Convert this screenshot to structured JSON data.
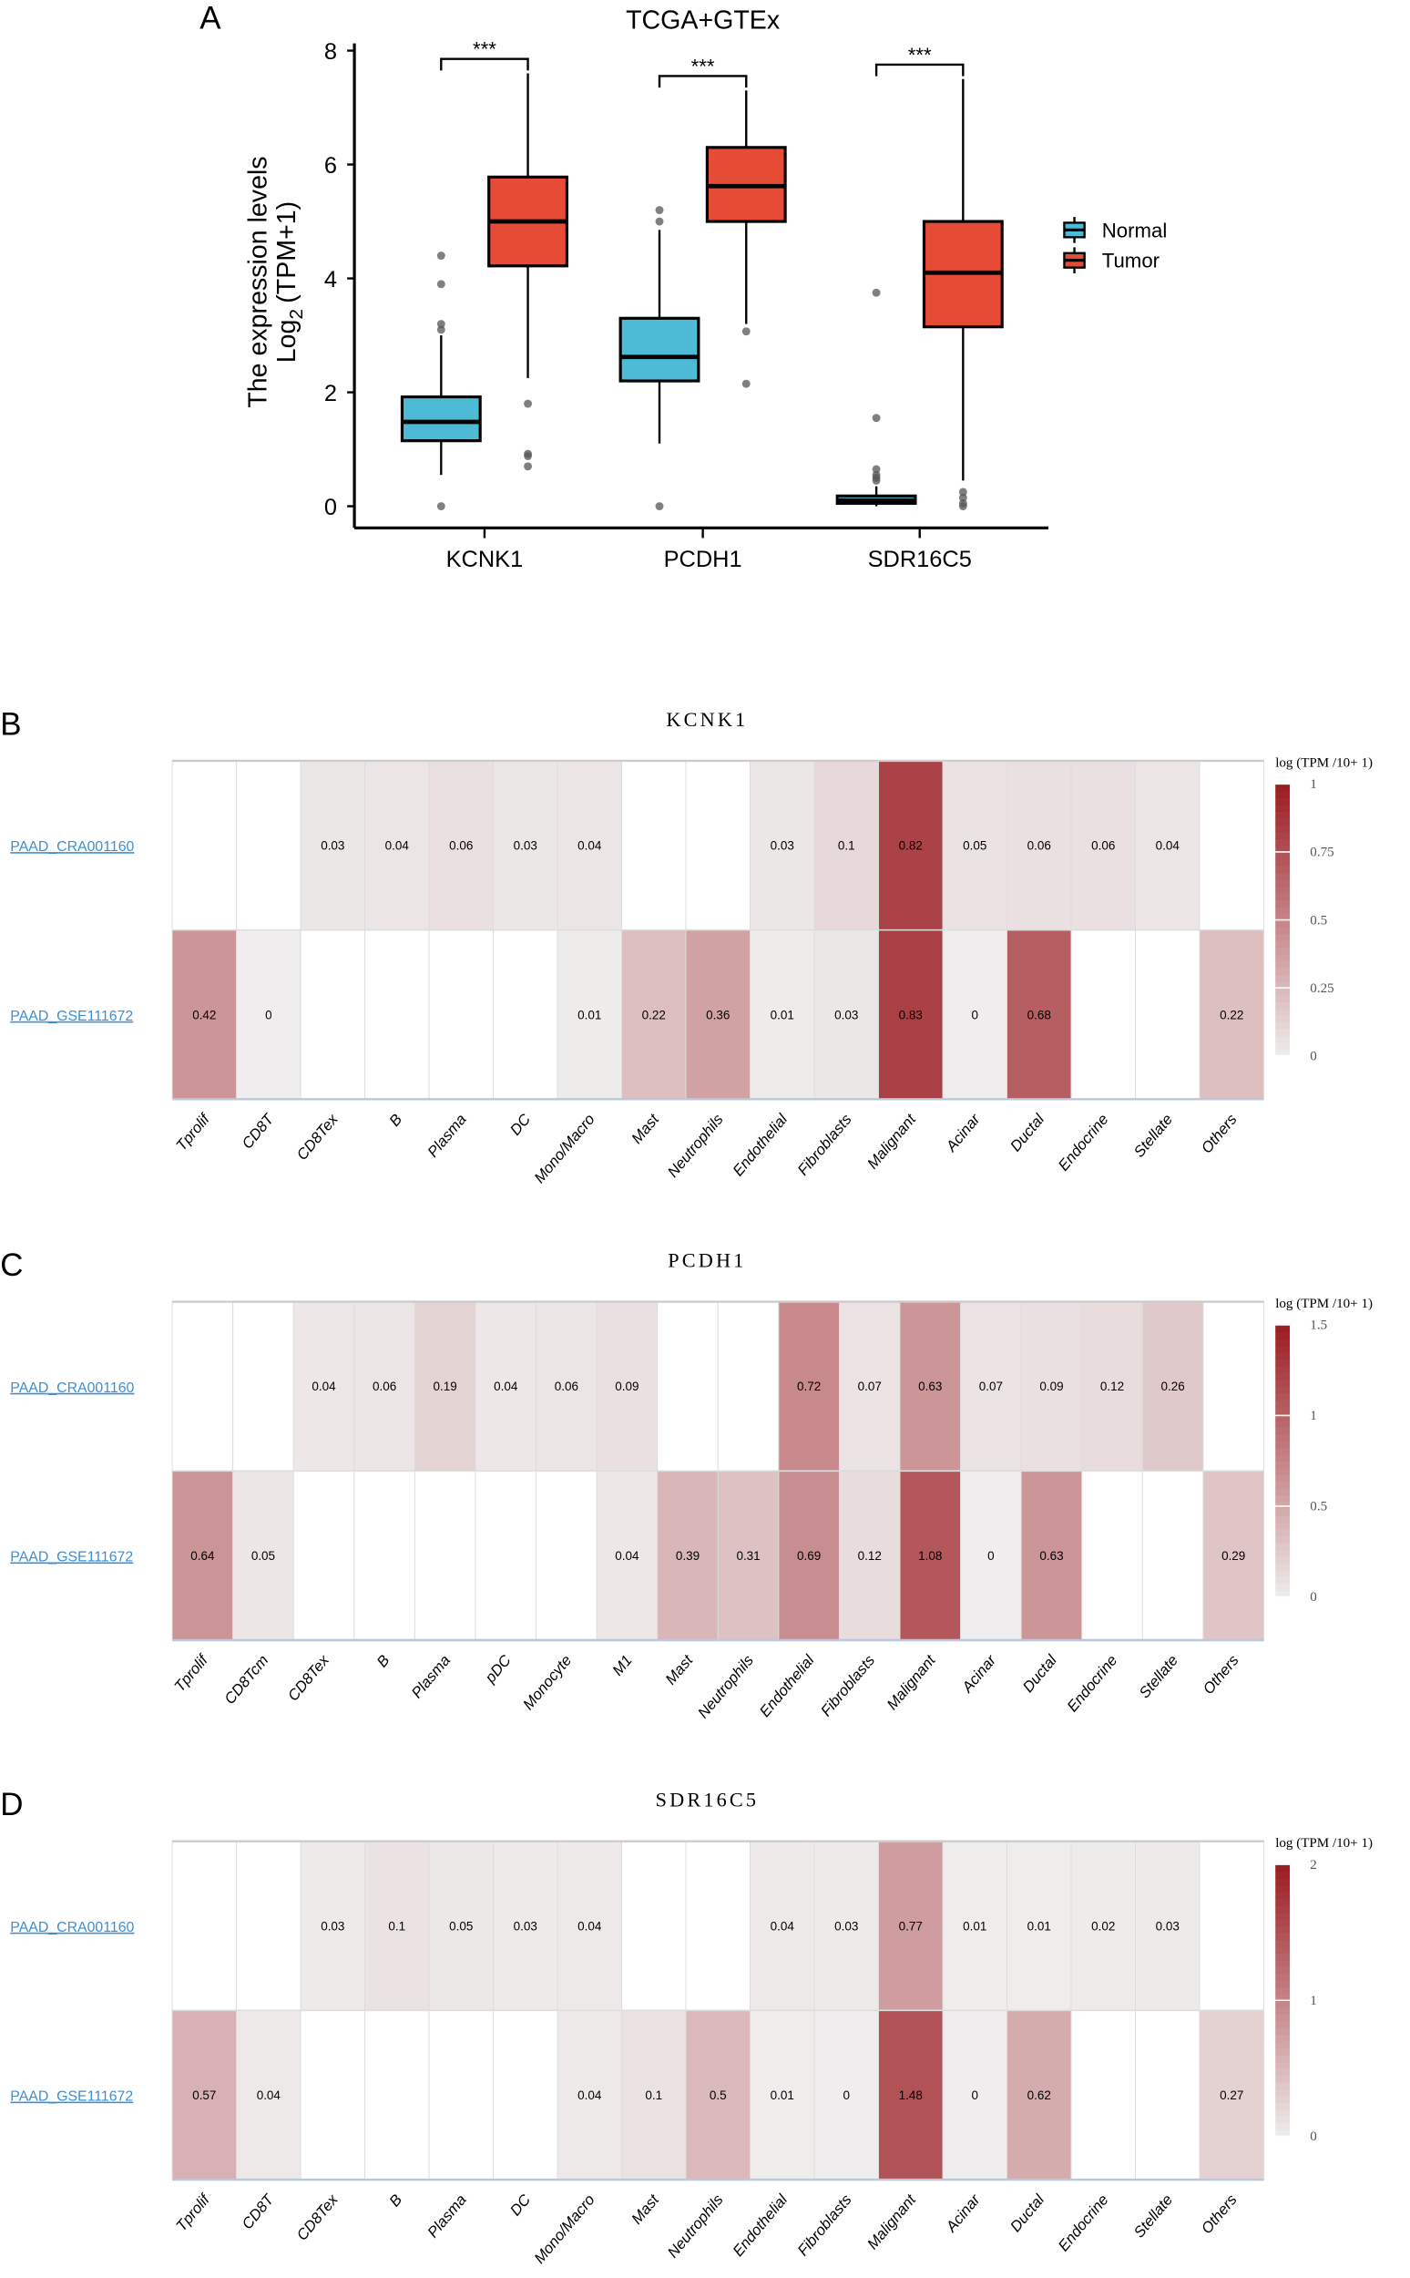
{
  "chart_data": [
    {
      "type": "box",
      "panel_label": "A",
      "title": "TCGA+GTEx",
      "ylabel_line1": "The expression levels",
      "ylabel_log": "Log",
      "ylabel_sub": "2",
      "ylabel_unit": "(TPM+1)",
      "ylim": [
        0,
        8
      ],
      "yticks": [
        "0",
        "2",
        "4",
        "6",
        "8"
      ],
      "categories": [
        "KCNK1",
        "PCDH1",
        "SDR16C5"
      ],
      "significance": [
        "***",
        "***",
        "***"
      ],
      "legend": [
        {
          "name": "Normal",
          "color": "#4dbbd5"
        },
        {
          "name": "Tumor",
          "color": "#e64b35"
        }
      ],
      "legend_position": "right",
      "series": [
        {
          "name": "Normal",
          "boxes": [
            {
              "q1": 1.15,
              "median": 1.48,
              "q3": 1.92,
              "low": 0.55,
              "high": 3.0,
              "outliers": [
                0,
                3.1,
                3.2,
                3.9,
                4.4
              ]
            },
            {
              "q1": 2.2,
              "median": 2.62,
              "q3": 3.3,
              "low": 1.1,
              "high": 4.85,
              "outliers": [
                0,
                5.0,
                5.2
              ]
            },
            {
              "q1": 0.05,
              "median": 0.1,
              "q3": 0.18,
              "low": 0,
              "high": 0.35,
              "outliers": [
                0.45,
                0.5,
                0.55,
                0.65,
                1.55,
                3.75
              ]
            }
          ]
        },
        {
          "name": "Tumor",
          "boxes": [
            {
              "q1": 4.22,
              "median": 5.0,
              "q3": 5.78,
              "low": 2.25,
              "high": 7.6,
              "outliers": [
                0.7,
                0.88,
                0.92,
                1.8
              ]
            },
            {
              "q1": 5.0,
              "median": 5.62,
              "q3": 6.3,
              "low": 3.2,
              "high": 7.3,
              "outliers": [
                2.15,
                3.07
              ]
            },
            {
              "q1": 3.15,
              "median": 4.1,
              "q3": 5.0,
              "low": 0.45,
              "high": 7.5,
              "outliers": [
                0,
                0.05,
                0.15,
                0.25
              ]
            }
          ]
        }
      ]
    },
    {
      "type": "heatmap",
      "panel_label": "B",
      "title": "KCNK1",
      "legend_title": "log (TPM /10+ 1)",
      "color_range": [
        0,
        1
      ],
      "legend_ticks": [
        "0",
        "0.25",
        "0.5",
        "0.75",
        "1"
      ],
      "rows": [
        "PAAD_CRA001160",
        "PAAD_GSE111672"
      ],
      "columns": [
        "Tprolif",
        "CD8T",
        "CD8Tex",
        "B",
        "Plasma",
        "DC",
        "Mono/Macro",
        "Mast",
        "Neutrophils",
        "Endothelial",
        "Fibroblasts",
        "Malignant",
        "Acinar",
        "Ductal",
        "Endocrine",
        "Stellate",
        "Others"
      ],
      "values": [
        [
          null,
          null,
          0.03,
          0.04,
          0.06,
          0.03,
          0.04,
          null,
          null,
          0.03,
          0.1,
          0.82,
          0.05,
          0.06,
          0.06,
          0.04,
          null
        ],
        [
          0.42,
          0,
          null,
          null,
          null,
          null,
          0.01,
          0.22,
          0.36,
          0.01,
          0.03,
          0.83,
          0,
          0.68,
          null,
          null,
          0.22
        ]
      ]
    },
    {
      "type": "heatmap",
      "panel_label": "C",
      "title": "PCDH1",
      "legend_title": "log (TPM /10+ 1)",
      "color_range": [
        0,
        1.5
      ],
      "legend_ticks": [
        "0",
        "0.5",
        "1",
        "1.5"
      ],
      "rows": [
        "PAAD_CRA001160",
        "PAAD_GSE111672"
      ],
      "columns": [
        "Tprolif",
        "CD8Tcm",
        "CD8Tex",
        "B",
        "Plasma",
        "pDC",
        "Monocyte",
        "M1",
        "Mast",
        "Neutrophils",
        "Endothelial",
        "Fibroblasts",
        "Malignant",
        "Acinar",
        "Ductal",
        "Endocrine",
        "Stellate",
        "Others"
      ],
      "values": [
        [
          null,
          null,
          0.04,
          0.06,
          0.19,
          0.04,
          0.06,
          0.09,
          null,
          null,
          0.72,
          0.07,
          0.63,
          0.07,
          0.09,
          0.12,
          0.26,
          null
        ],
        [
          0.64,
          0.05,
          null,
          null,
          null,
          null,
          null,
          0.04,
          0.39,
          0.31,
          0.69,
          0.12,
          1.08,
          0,
          0.63,
          null,
          null,
          0.29
        ]
      ]
    },
    {
      "type": "heatmap",
      "panel_label": "D",
      "title": "SDR16C5",
      "legend_title": "log (TPM /10+ 1)",
      "color_range": [
        0,
        2
      ],
      "legend_ticks": [
        "0",
        "1",
        "2"
      ],
      "rows": [
        "PAAD_CRA001160",
        "PAAD_GSE111672"
      ],
      "columns": [
        "Tprolif",
        "CD8T",
        "CD8Tex",
        "B",
        "Plasma",
        "DC",
        "Mono/Macro",
        "Mast",
        "Neutrophils",
        "Endothelial",
        "Fibroblasts",
        "Malignant",
        "Acinar",
        "Ductal",
        "Endocrine",
        "Stellate",
        "Others"
      ],
      "values": [
        [
          null,
          null,
          0.03,
          0.1,
          0.05,
          0.03,
          0.04,
          null,
          null,
          0.04,
          0.03,
          0.77,
          0.01,
          0.01,
          0.02,
          0.03,
          null
        ],
        [
          0.57,
          0.04,
          null,
          null,
          null,
          null,
          0.04,
          0.1,
          0.5,
          0.01,
          0,
          1.48,
          0,
          0.62,
          null,
          null,
          0.27
        ]
      ]
    }
  ]
}
